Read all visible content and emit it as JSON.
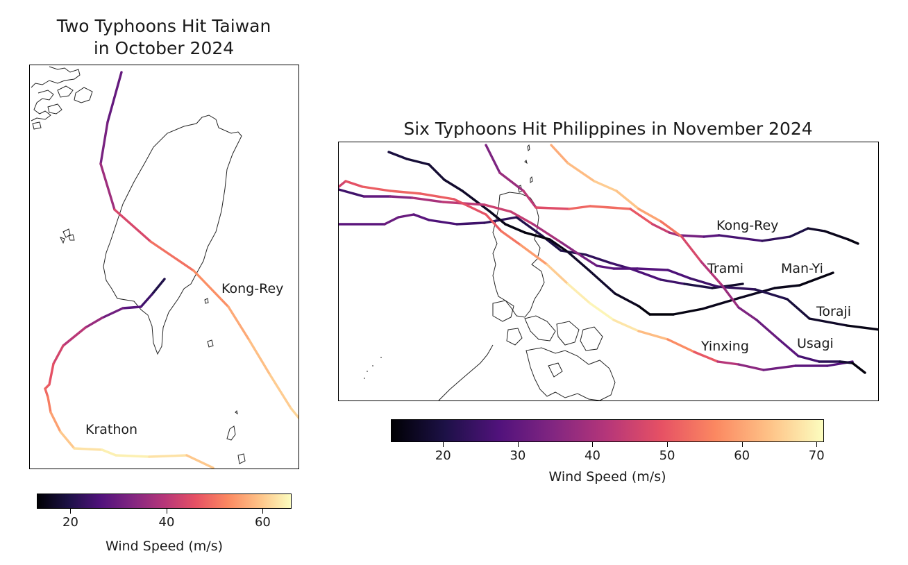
{
  "colormap": {
    "name": "magma",
    "stops": [
      "#000004",
      "#1d1147",
      "#51127c",
      "#822681",
      "#b63679",
      "#e65164",
      "#fb8861",
      "#fec287",
      "#fcfdbf"
    ]
  },
  "left_panel": {
    "title_line1": "Two Typhoons Hit Taiwan",
    "title_line2": "in October 2024",
    "storms": [
      {
        "name": "Kong-Rey",
        "label": "Kong-Rey",
        "wind_start": 32,
        "wind_end": 62
      },
      {
        "name": "Krathon",
        "label": "Krathon",
        "wind_start": 22,
        "wind_end": 65
      }
    ],
    "colorbar": {
      "min": 13,
      "max": 66,
      "ticks": [
        "20",
        "40",
        "60"
      ],
      "tick_values": [
        20,
        40,
        60
      ],
      "label": "Wind Speed (m/s)"
    }
  },
  "right_panel": {
    "title": "Six Typhoons Hit Philippines in November 2024",
    "storms": [
      {
        "name": "Kong-Rey",
        "label": "Kong-Rey"
      },
      {
        "name": "Trami",
        "label": "Trami"
      },
      {
        "name": "Man-Yi",
        "label": "Man-Yi"
      },
      {
        "name": "Toraji",
        "label": "Toraji"
      },
      {
        "name": "Yinxing",
        "label": "Yinxing"
      },
      {
        "name": "Usagi",
        "label": "Usagi"
      }
    ],
    "colorbar": {
      "min": 13,
      "max": 71,
      "ticks": [
        "20",
        "30",
        "40",
        "50",
        "60",
        "70"
      ],
      "tick_values": [
        20,
        30,
        40,
        50,
        60,
        70
      ],
      "label": "Wind Speed (m/s)"
    }
  }
}
